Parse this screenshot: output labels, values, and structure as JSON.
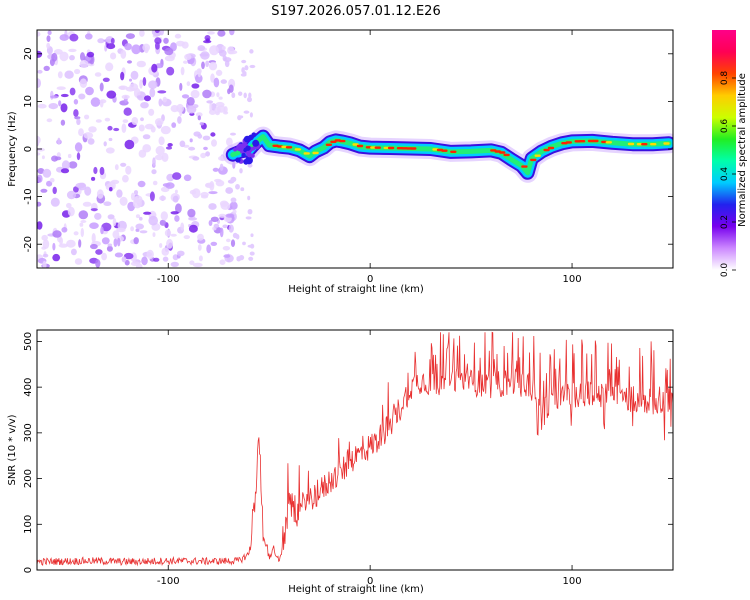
{
  "title": "S197.2026.057.01.12.E26",
  "chart_data": [
    {
      "type": "heatmap",
      "name": "spectrogram",
      "xlabel": "Height of straight line (km)",
      "ylabel": "Frequency (Hz)",
      "xlim": [
        -165,
        150
      ],
      "ylim": [
        -25,
        25
      ],
      "xticks": [
        -100,
        0,
        100
      ],
      "yticks": [
        -20,
        -10,
        0,
        10,
        20
      ],
      "noise_region_x": [
        -165,
        -67
      ],
      "signal_track": {
        "x": [
          -68,
          -64,
          -60,
          -57,
          -53,
          -50,
          -45,
          -40,
          -35,
          -30,
          -27,
          -23,
          -20,
          -17,
          -14,
          -10,
          -5,
          0,
          10,
          20,
          30,
          40,
          50,
          60,
          65,
          70,
          75,
          78,
          80,
          85,
          90,
          95,
          100,
          110,
          120,
          130,
          140,
          148
        ],
        "y": [
          -1.2,
          -0.5,
          -0.2,
          1.2,
          2.6,
          0.8,
          0.5,
          0.3,
          -0.3,
          -1.5,
          -0.5,
          0.3,
          1.4,
          1.8,
          1.6,
          1.2,
          0.5,
          0.3,
          0.2,
          0.1,
          0.0,
          -0.6,
          -0.5,
          -0.3,
          -0.8,
          -2.2,
          -3.5,
          -5.0,
          -2.0,
          -0.5,
          0.5,
          1.2,
          1.6,
          1.7,
          1.3,
          1.0,
          1.0,
          1.2
        ]
      },
      "colorbar": {
        "label": "Normalized spectral amplitude",
        "range": [
          0,
          1
        ],
        "ticks": [
          "0.0",
          "0.2",
          "0.4",
          "0.6",
          "0.8"
        ],
        "tick_values": [
          0.0,
          0.2,
          0.4,
          0.6,
          0.8
        ],
        "colors": [
          "#ffffff",
          "#cc88ff",
          "#7700ee",
          "#2222ee",
          "#00ccff",
          "#00ffaa",
          "#22ee22",
          "#ccff00",
          "#ffcc00",
          "#ff4400",
          "#ff0055",
          "#ff0088"
        ]
      }
    },
    {
      "type": "line",
      "name": "snr",
      "xlabel": "Height of straight line (km)",
      "ylabel": "SNR (10 * v/v)",
      "xlim": [
        -165,
        150
      ],
      "ylim": [
        0,
        525
      ],
      "xticks": [
        -100,
        0,
        100
      ],
      "yticks": [
        0,
        100,
        200,
        300,
        400,
        500
      ],
      "color": "#e83030",
      "series": [
        {
          "name": "SNR",
          "x": [
            -165,
            -140,
            -120,
            -100,
            -80,
            -65,
            -60,
            -57,
            -55,
            -53,
            -50,
            -48,
            -45,
            -42,
            -40,
            -38,
            -35,
            -32,
            -30,
            -25,
            -20,
            -15,
            -10,
            -5,
            0,
            5,
            10,
            15,
            20,
            25,
            30,
            40,
            50,
            60,
            70,
            80,
            82,
            85,
            90,
            100,
            110,
            120,
            130,
            140,
            150
          ],
          "y": [
            18,
            20,
            18,
            20,
            19,
            20,
            35,
            160,
            290,
            90,
            25,
            50,
            15,
            80,
            155,
            130,
            120,
            160,
            155,
            170,
            195,
            210,
            240,
            255,
            270,
            290,
            320,
            355,
            400,
            415,
            410,
            415,
            410,
            405,
            410,
            400,
            395,
            330,
            385,
            380,
            385,
            380,
            375,
            370,
            375
          ]
        }
      ],
      "annotations": {
        "max_peak": 520,
        "min_trough": 295
      }
    }
  ]
}
